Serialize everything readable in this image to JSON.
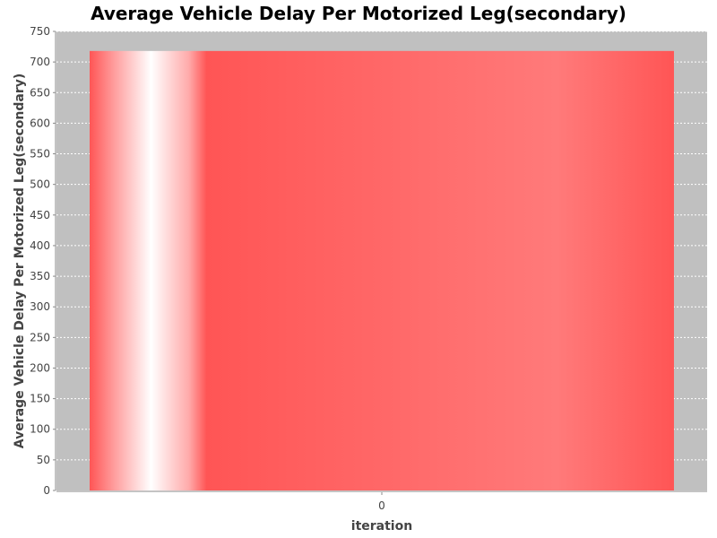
{
  "chart_data": {
    "type": "bar",
    "title": "Average Vehicle Delay Per Motorized Leg(secondary)",
    "xlabel": "iteration",
    "ylabel": "Average Vehicle Delay Per Motorized Leg(secondary)",
    "categories": [
      "0"
    ],
    "series": [
      {
        "values": [
          718
        ]
      }
    ],
    "ylim": [
      0,
      750
    ],
    "yticks": [
      0,
      50,
      100,
      150,
      200,
      250,
      300,
      350,
      400,
      450,
      500,
      550,
      600,
      650,
      700,
      750
    ],
    "grid": true,
    "legend": "none"
  },
  "colors": {
    "plot_background": "#c0c0c0",
    "gridline": "#ffffff",
    "bar": "#ff5555",
    "bar_highlight": "#ffffff",
    "axis": "#888888"
  }
}
